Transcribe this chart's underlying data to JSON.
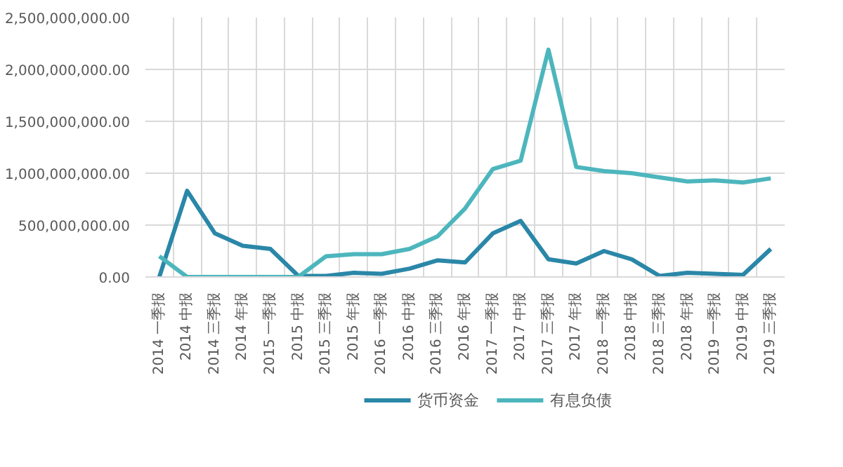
{
  "chart_data": {
    "type": "line",
    "categories": [
      "2014 一季报",
      "2014 中报",
      "2014 三季报",
      "2014 年报",
      "2015 一季报",
      "2015 中报",
      "2015 三季报",
      "2015 年报",
      "2016 一季报",
      "2016 中报",
      "2016 三季报",
      "2016 年报",
      "2017 一季报",
      "2017 中报",
      "2017 三季报",
      "2017 年报",
      "2018 一季报",
      "2018 中报",
      "2018 三季报",
      "2018 年报",
      "2019 一季报",
      "2019 中报",
      "2019 三季报"
    ],
    "series": [
      {
        "name": "货币资金",
        "color": "#2a87a8",
        "values": [
          0,
          830000000,
          420000000,
          300000000,
          270000000,
          10000000,
          10000000,
          40000000,
          30000000,
          80000000,
          160000000,
          140000000,
          420000000,
          540000000,
          170000000,
          130000000,
          250000000,
          170000000,
          10000000,
          40000000,
          30000000,
          20000000,
          270000000
        ]
      },
      {
        "name": "有息负债",
        "color": "#4db6bd",
        "values": [
          200000000,
          0,
          0,
          0,
          0,
          0,
          200000000,
          220000000,
          220000000,
          270000000,
          390000000,
          660000000,
          1040000000,
          1120000000,
          2190000000,
          1060000000,
          1020000000,
          1000000000,
          960000000,
          920000000,
          930000000,
          910000000,
          950000000
        ]
      }
    ],
    "ylim": [
      0,
      2500000000
    ],
    "yticks": [
      {
        "value": 0,
        "label": "0.00"
      },
      {
        "value": 500000000,
        "label": "500,000,000.00"
      },
      {
        "value": 1000000000,
        "label": "1,000,000,000.00"
      },
      {
        "value": 1500000000,
        "label": "1,500,000,000.00"
      },
      {
        "value": 2000000000,
        "label": "2,000,000,000.00"
      },
      {
        "value": 2500000000,
        "label": "2,500,000,000.00"
      }
    ],
    "grid": true,
    "legend": "bottom",
    "marker": "none",
    "line_style": "solid"
  }
}
